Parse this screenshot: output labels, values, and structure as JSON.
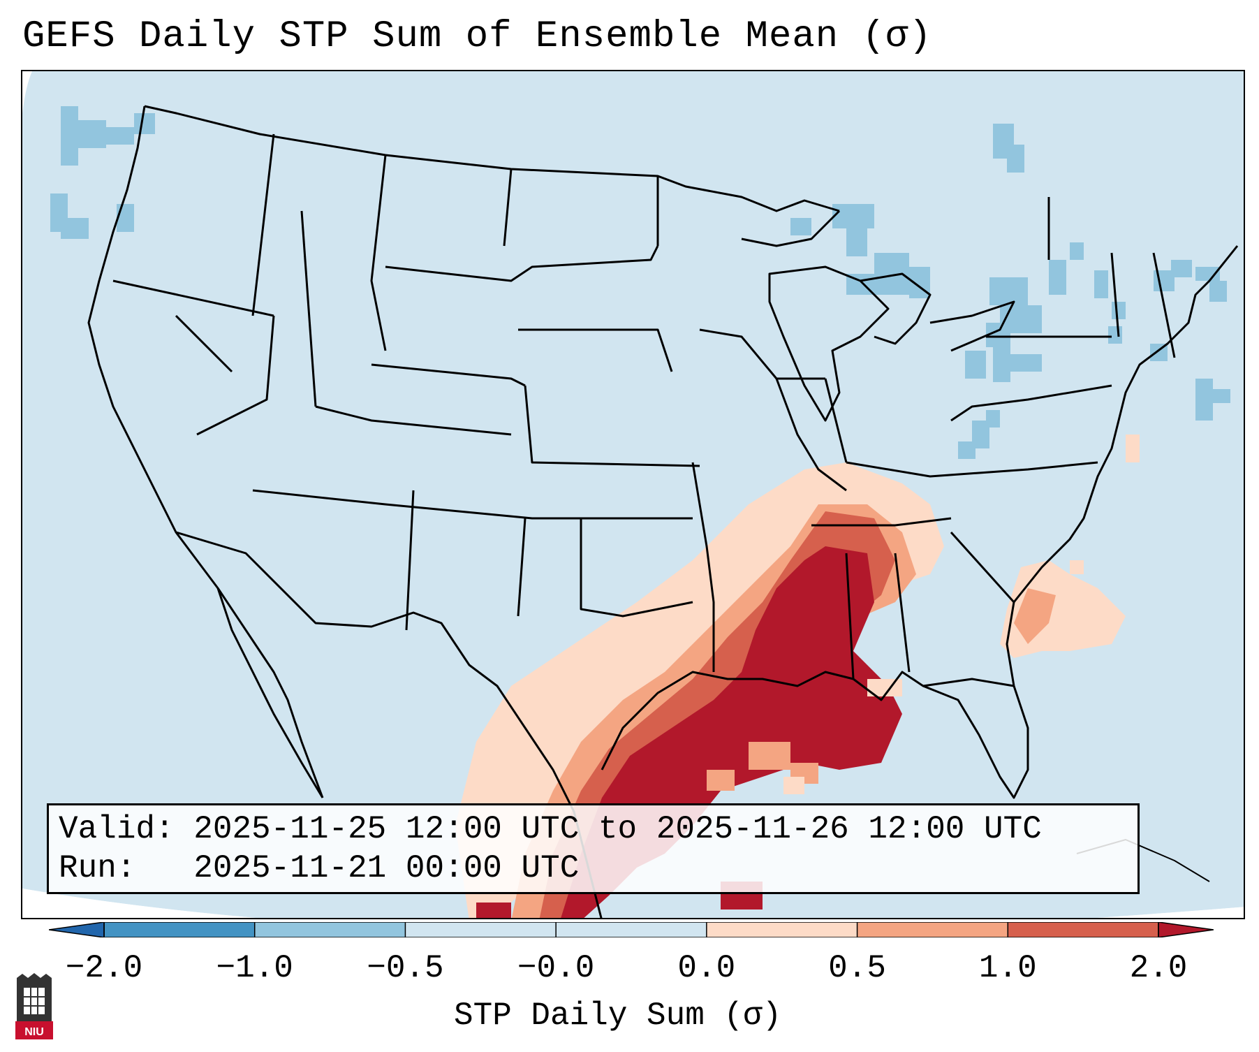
{
  "title": "GEFS Daily STP Sum of Ensemble Mean (σ)",
  "info": {
    "valid": "Valid: 2025-11-25 12:00 UTC to 2025-11-26 12:00 UTC",
    "run": "Run:   2025-11-21 00:00 UTC"
  },
  "colorbar": {
    "label": "STP Daily Sum (σ)",
    "ticks": [
      "−2.0",
      "−1.0",
      "−0.5",
      "−0.0",
      "0.0",
      "0.5",
      "1.0",
      "2.0"
    ],
    "colors": [
      "#2166ac",
      "#4393c3",
      "#92c5de",
      "#d1e5f0",
      "#fddbc7",
      "#f4a582",
      "#d6604d",
      "#b2182b"
    ]
  },
  "logo": {
    "text": "NIU",
    "color": "#c8102e"
  },
  "map_colors": {
    "background": "#d1e5f0",
    "ocean_outside": "#ffffff",
    "light_blue": "#92c5de",
    "pale_red": "#fddbc7",
    "salmon": "#f4a582",
    "red": "#d6604d",
    "dark_red": "#b2182b",
    "outline": "#000000"
  }
}
